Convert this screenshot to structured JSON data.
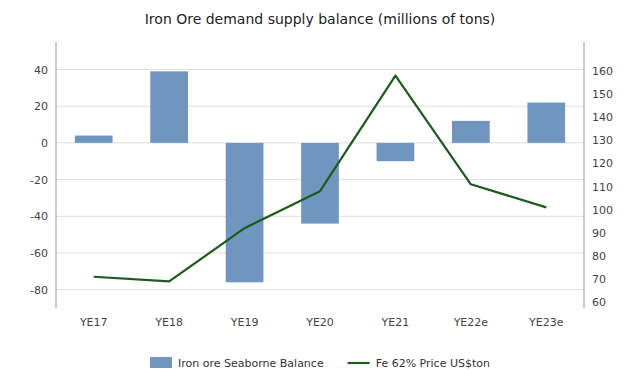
{
  "chart_data": {
    "type": "bar",
    "title": "Iron Ore demand supply balance (millions of tons)",
    "categories": [
      "YE17",
      "YE18",
      "YE19",
      "YE20",
      "YE21",
      "YE22e",
      "YE23e"
    ],
    "series": [
      {
        "name": "Iron ore Seaborne Balance",
        "type": "bar",
        "color": "#7096C0",
        "values": [
          4,
          39,
          -76,
          -44,
          -10,
          12,
          22
        ]
      },
      {
        "name": "Fe 62% Price US$ton",
        "type": "line",
        "color": "#1a5c1a",
        "axis": "y2",
        "values": [
          71,
          69,
          92,
          108,
          158,
          111,
          101
        ]
      }
    ],
    "ylim": [
      -90,
      55
    ],
    "yticks": [
      -80,
      -60,
      -40,
      -20,
      0,
      20,
      40
    ],
    "y2lim": [
      57.5,
      172.5
    ],
    "y2ticks": [
      60,
      70,
      80,
      90,
      100,
      110,
      120,
      130,
      140,
      150,
      160
    ],
    "grid": true,
    "legend": "bottom"
  }
}
